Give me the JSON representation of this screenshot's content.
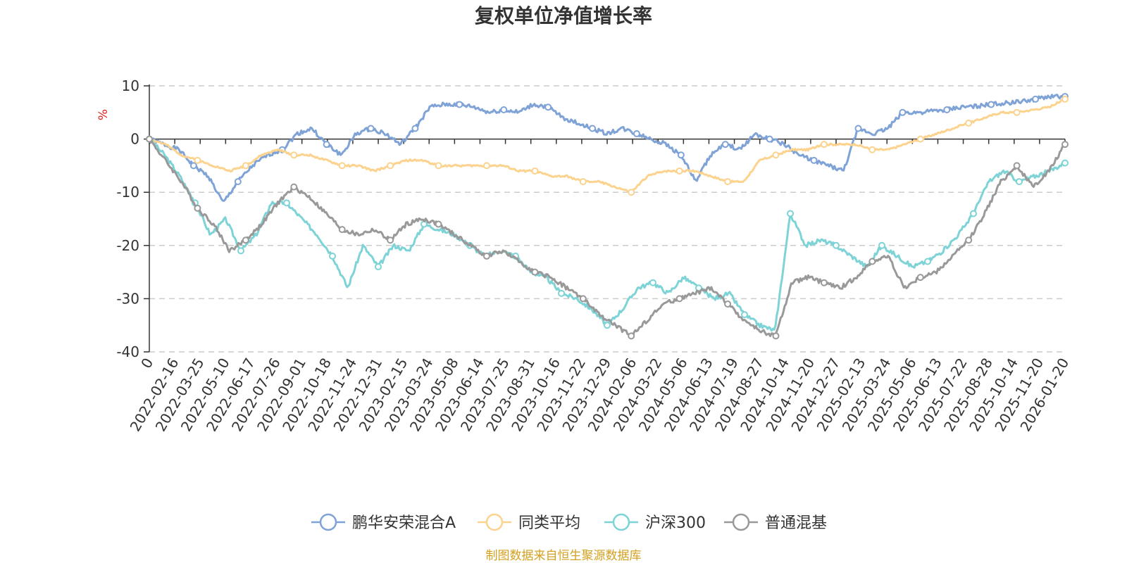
{
  "chart_data": {
    "type": "line",
    "title": "复权单位净值增长率",
    "ylabel": "%",
    "xlabel": "",
    "ylim": [
      -40,
      10
    ],
    "yticks": [
      10,
      0,
      -10,
      -20,
      -30,
      -40
    ],
    "xticks": [
      "0",
      "2022-02-16",
      "2022-03-25",
      "2022-05-10",
      "2022-06-17",
      "2022-07-26",
      "2022-09-01",
      "2022-10-18",
      "2022-11-24",
      "2022-12-31",
      "2023-02-15",
      "2023-03-24",
      "2023-05-08",
      "2023-06-14",
      "2023-07-25",
      "2023-08-31",
      "2023-10-16",
      "2023-11-22",
      "2023-12-29",
      "2024-02-06",
      "2024-03-22",
      "2024-05-06",
      "2024-06-13",
      "2024-07-19",
      "2024-08-27",
      "2024-10-14",
      "2024-11-20",
      "2024-12-27",
      "2025-02-13",
      "2025-03-24",
      "2025-05-06",
      "2025-06-13",
      "2025-07-22",
      "2025-08-28",
      "2025-10-14",
      "2025-11-20",
      "2026-01-20"
    ],
    "grid": true,
    "legend_position": "bottom",
    "series": [
      {
        "name": "鹏华安荣混合A",
        "color": "#7fa3d6",
        "values": [
          0,
          -1,
          -2,
          -5,
          -7,
          -12,
          -8,
          -5,
          -3,
          -2,
          1,
          2,
          -1,
          -3,
          1,
          2,
          1,
          -1,
          2,
          6,
          6.5,
          6.5,
          6,
          5,
          5.5,
          5,
          6.5,
          6,
          4,
          3,
          2,
          1,
          2,
          1,
          0,
          -1,
          -3,
          -8,
          -3,
          -1,
          -2,
          1,
          0,
          -1,
          -3,
          -4,
          -5,
          -6,
          2,
          1,
          2,
          5,
          5,
          5.2,
          5.5,
          6,
          6.2,
          6.5,
          6.8,
          7,
          7.5,
          8,
          8
        ]
      },
      {
        "name": "同类平均",
        "color": "#fcd38e",
        "values": [
          0,
          -1,
          -3,
          -4,
          -5,
          -6,
          -5,
          -3,
          -2,
          -3,
          -3,
          -4,
          -5,
          -5,
          -6,
          -5,
          -4,
          -4,
          -5,
          -5,
          -5,
          -5,
          -5,
          -6,
          -6,
          -7,
          -7,
          -8,
          -8,
          -9,
          -10,
          -7,
          -6,
          -6,
          -6,
          -7,
          -8,
          -8,
          -4,
          -3,
          -2,
          -2,
          -1,
          -1,
          -1,
          -2,
          -2,
          -1,
          0,
          1,
          2,
          3,
          4,
          5,
          5,
          5.5,
          6,
          7.5
        ]
      },
      {
        "name": "沪深300",
        "color": "#7dd3d6",
        "values": [
          0,
          -3,
          -7,
          -12,
          -18,
          -15,
          -21,
          -18,
          -12,
          -12,
          -15,
          -18,
          -22,
          -28,
          -20,
          -24,
          -20,
          -21,
          -16,
          -17,
          -18,
          -20,
          -22,
          -21,
          -22,
          -25,
          -26,
          -29,
          -30,
          -32,
          -35,
          -32,
          -28,
          -27,
          -29,
          -26,
          -28,
          -30,
          -29,
          -33,
          -35,
          -36,
          -14,
          -20,
          -19,
          -20,
          -22,
          -24,
          -20,
          -22,
          -24,
          -23,
          -21,
          -18,
          -14,
          -8,
          -6,
          -8,
          -7,
          -6,
          -4.5
        ]
      },
      {
        "name": "普通混基",
        "color": "#999999",
        "values": [
          0,
          -4,
          -8,
          -13,
          -16,
          -21,
          -19,
          -16,
          -12,
          -9,
          -11,
          -14,
          -17,
          -18,
          -17,
          -19,
          -16,
          -15,
          -16,
          -18,
          -20,
          -22,
          -21,
          -23,
          -25,
          -26,
          -28,
          -30,
          -33,
          -35,
          -37,
          -34,
          -31,
          -30,
          -29,
          -28,
          -31,
          -34,
          -36,
          -37,
          -27,
          -26,
          -27,
          -28,
          -26,
          -23,
          -22,
          -28,
          -26,
          -25,
          -22,
          -19,
          -14,
          -8,
          -5,
          -9,
          -6,
          -1
        ]
      }
    ]
  },
  "legend": {
    "items": [
      "鹏华安荣混合A",
      "同类平均",
      "沪深300",
      "普通混基"
    ]
  },
  "source": {
    "text": "制图数据来自恒生聚源数据库",
    "color": "#d4a020"
  },
  "colors": {
    "axis": "#333333",
    "grid": "#cccccc",
    "unit": "#e02020"
  }
}
